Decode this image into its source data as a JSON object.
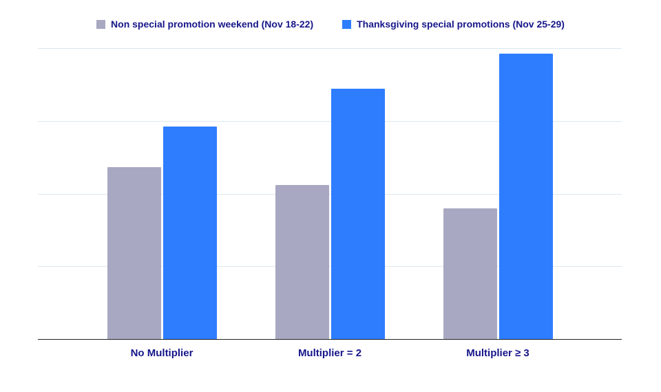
{
  "chart_data": {
    "type": "bar",
    "title": "",
    "categories": [
      "No Multiplier",
      "Multiplier = 2",
      "Multiplier ≥ 3"
    ],
    "series": [
      {
        "name": "Non special promotion weekend (Nov 18-22)",
        "color": "#a8a8c2",
        "values": [
          59,
          53,
          45
        ]
      },
      {
        "name": "Thanksgiving special promotions (Nov 25-29)",
        "color": "#2e7dff",
        "values": [
          73,
          86,
          98
        ]
      }
    ],
    "xlabel": "",
    "ylabel": "",
    "ylim": [
      0,
      100
    ],
    "gridline_step": 25,
    "grid": true,
    "y_axis_labels_visible": false,
    "legend_position": "top"
  },
  "colors": {
    "text": "#16168a",
    "gridline": "#dbe7f3",
    "axis": "#222222",
    "background": "#ffffff"
  }
}
